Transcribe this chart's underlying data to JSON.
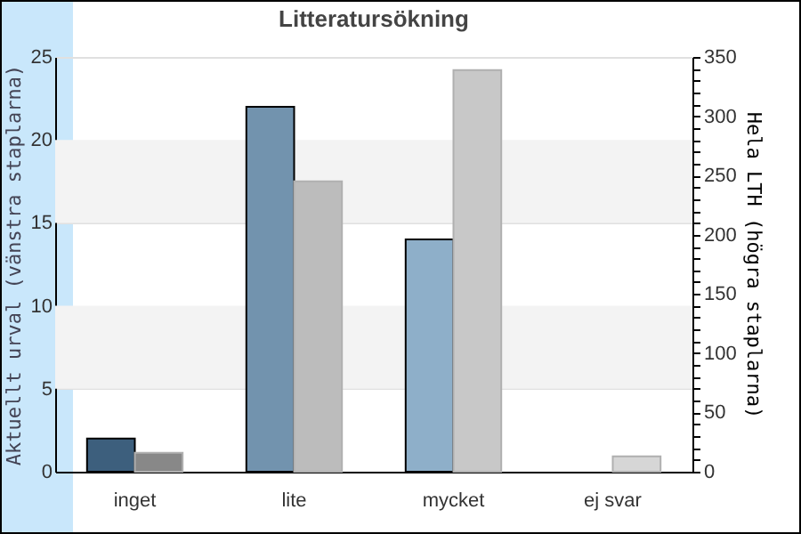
{
  "chart_data": {
    "type": "bar",
    "title": "Litteratursökning",
    "ylabel": "Aktuellt urval (vänstra staplarna)",
    "y2label": "Hela LTH (högra staplarna)",
    "categories": [
      "inget",
      "lite",
      "mycket",
      "ej svar"
    ],
    "series": [
      {
        "colors": [
          "#3d5f7d",
          "#7293ae",
          "#8eafc9",
          "#8eafc9"
        ],
        "values": [
          2,
          22,
          14,
          null
        ]
      },
      {
        "axis": "y2",
        "colors": [
          "#888888",
          "#bcbcbc",
          "#c8c8c8",
          "#d6d6d6"
        ],
        "values": [
          16,
          245,
          339,
          13
        ]
      }
    ],
    "ylim": [
      0,
      25
    ],
    "yticks": [
      0,
      5,
      10,
      15,
      20,
      25
    ],
    "y2lim": [
      0,
      350
    ],
    "y2ticks": [
      0,
      {
        "value": 10,
        "label": null
      },
      {
        "value": 20,
        "label": null
      },
      {
        "value": 30,
        "label": null
      },
      {
        "value": 40,
        "label": null
      },
      50,
      {
        "value": 60,
        "label": null
      },
      {
        "value": 70,
        "label": null
      },
      {
        "value": 80,
        "label": null
      },
      {
        "value": 90,
        "label": null
      },
      100,
      {
        "value": 110,
        "label": null
      },
      {
        "value": 120,
        "label": null
      },
      {
        "value": 130,
        "label": null
      },
      {
        "value": 140,
        "label": null
      },
      150,
      {
        "value": 160,
        "label": null
      },
      {
        "value": 170,
        "label": null
      },
      {
        "value": 180,
        "label": null
      },
      {
        "value": 190,
        "label": null
      },
      200,
      {
        "value": 210,
        "label": null
      },
      {
        "value": 220,
        "label": null
      },
      {
        "value": 230,
        "label": null
      },
      {
        "value": 240,
        "label": null
      },
      250,
      {
        "value": 260,
        "label": null
      },
      {
        "value": 270,
        "label": null
      },
      {
        "value": 280,
        "label": null
      },
      {
        "value": 290,
        "label": null
      },
      300,
      {
        "value": 310,
        "label": null
      },
      {
        "value": 320,
        "label": null
      },
      {
        "value": 330,
        "label": null
      },
      {
        "value": 340,
        "label": null
      },
      350
    ],
    "bands": [
      {
        "axis": "y",
        "from": 5,
        "to": 10,
        "color": "#f3f3f3"
      },
      {
        "axis": "y",
        "from": 15,
        "to": 20,
        "color": "#f3f3f3"
      }
    ],
    "grid": "y"
  }
}
